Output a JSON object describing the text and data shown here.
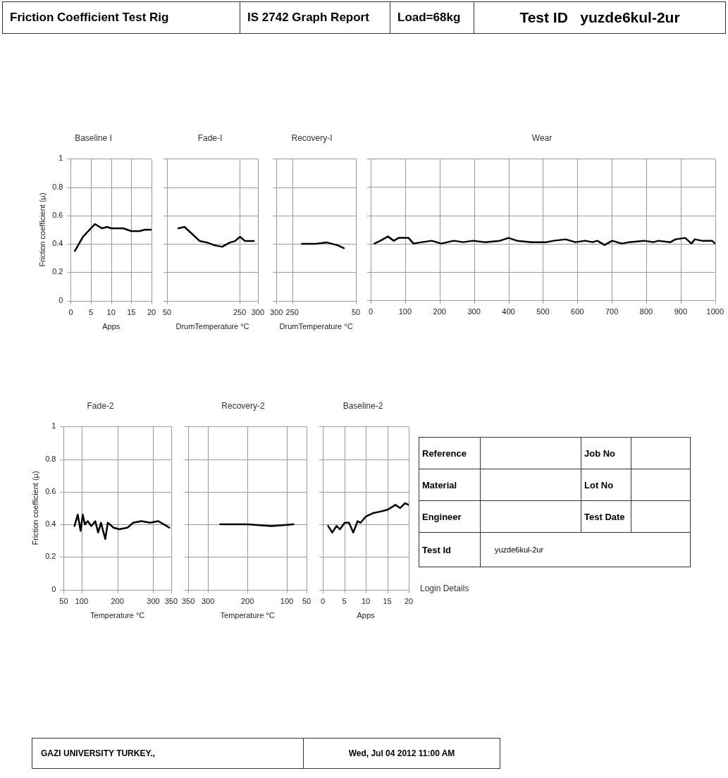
{
  "chart_data": [
    {
      "type": "other",
      "title": "Friction Coefficient Test Rig",
      "annotations": [
        "IS 2742 Graph Report",
        "Load=68kg",
        "Test ID   yuzde6kul-2ur"
      ]
    },
    {
      "type": "line",
      "title": "Baseline I",
      "xlabel": "Apps",
      "ylabel": "Friction coefficient (µ)",
      "xlim": [
        0,
        20
      ],
      "xticks": [
        0,
        5,
        10,
        15,
        20
      ],
      "ylim": [
        0,
        1
      ],
      "yticks": [
        0,
        0.2,
        0.4,
        0.6,
        0.8,
        1
      ],
      "grid": true,
      "series": [
        {
          "color": "#000000",
          "x": [
            1,
            3,
            4.3,
            6,
            7.7,
            9,
            10,
            13,
            15,
            17,
            18.3,
            20
          ],
          "values": [
            0.35,
            0.45,
            0.49,
            0.54,
            0.51,
            0.52,
            0.51,
            0.51,
            0.49,
            0.49,
            0.5,
            0.5
          ]
        }
      ]
    },
    {
      "type": "line",
      "title": "Fade-I",
      "xlabel": "DrumTemperature °C",
      "xlim": [
        50,
        300
      ],
      "xticks": [
        50,
        250,
        300
      ],
      "ylim": [
        0,
        1
      ],
      "yticks": [
        0,
        0.2,
        0.4,
        0.6,
        0.8,
        1
      ],
      "grid": true,
      "tick_labels": "x",
      "series": [
        {
          "color": "#000000",
          "x": [
            81,
            98,
            119,
            140,
            160,
            181,
            202,
            223,
            237,
            251,
            265,
            289
          ],
          "values": [
            0.51,
            0.52,
            0.47,
            0.42,
            0.41,
            0.39,
            0.38,
            0.41,
            0.42,
            0.45,
            0.42,
            0.42
          ]
        }
      ]
    },
    {
      "type": "line",
      "title": "Recovery-I",
      "xlabel": "DrumTemperature °C",
      "xlim": [
        300,
        50
      ],
      "xticks": [
        300,
        250,
        50
      ],
      "ylim": [
        0,
        1
      ],
      "yticks": [
        0,
        0.2,
        0.4,
        0.6,
        0.8,
        1
      ],
      "grid": true,
      "tick_labels": "x",
      "series": [
        {
          "color": "#000000",
          "x": [
            220,
            180,
            141,
            107,
            88
          ],
          "values": [
            0.4,
            0.4,
            0.41,
            0.39,
            0.37
          ]
        }
      ]
    },
    {
      "type": "line",
      "title": "Wear",
      "xlim": [
        0,
        1000
      ],
      "xticks": [
        0,
        100,
        200,
        300,
        400,
        500,
        600,
        700,
        800,
        900,
        1000
      ],
      "ylim": [
        0,
        1
      ],
      "yticks": [
        0,
        0.2,
        0.4,
        0.6,
        0.8,
        1
      ],
      "grid": true,
      "tick_labels": "x",
      "series": [
        {
          "color": "#000000",
          "x": [
            11,
            28,
            50,
            67,
            81,
            110,
            124,
            149,
            177,
            205,
            241,
            269,
            297,
            333,
            375,
            400,
            425,
            467,
            510,
            531,
            566,
            594,
            623,
            644,
            658,
            679,
            701,
            729,
            750,
            793,
            821,
            835,
            870,
            885,
            913,
            931,
            941,
            962,
            991,
            1000
          ],
          "values": [
            0.4,
            0.42,
            0.45,
            0.42,
            0.44,
            0.44,
            0.4,
            0.41,
            0.42,
            0.4,
            0.42,
            0.41,
            0.42,
            0.41,
            0.42,
            0.44,
            0.42,
            0.41,
            0.41,
            0.42,
            0.43,
            0.41,
            0.42,
            0.41,
            0.42,
            0.39,
            0.42,
            0.4,
            0.41,
            0.42,
            0.41,
            0.42,
            0.41,
            0.43,
            0.44,
            0.4,
            0.43,
            0.42,
            0.42,
            0.4
          ]
        }
      ]
    },
    {
      "type": "line",
      "title": "Fade-2",
      "xlabel": "Temperature °C",
      "ylabel": "Friction coefficient (µ)",
      "xlim": [
        50,
        350
      ],
      "xticks": [
        50,
        100,
        200,
        300,
        350
      ],
      "ylim": [
        0,
        1
      ],
      "yticks": [
        0,
        0.2,
        0.4,
        0.6,
        0.8,
        1
      ],
      "grid": true,
      "series": [
        {
          "color": "#000000",
          "x": [
            80,
            89,
            97,
            103,
            109,
            117,
            127,
            138,
            146,
            154,
            166,
            173,
            189,
            205,
            228,
            244,
            267,
            291,
            314,
            330,
            345
          ],
          "values": [
            0.39,
            0.46,
            0.36,
            0.46,
            0.4,
            0.42,
            0.39,
            0.42,
            0.35,
            0.41,
            0.31,
            0.41,
            0.38,
            0.37,
            0.38,
            0.41,
            0.42,
            0.41,
            0.42,
            0.4,
            0.38
          ]
        }
      ]
    },
    {
      "type": "line",
      "title": "Recovery-2",
      "xlabel": "Temperature °C",
      "xlim": [
        350,
        50
      ],
      "xticks": [
        350,
        300,
        200,
        100,
        50
      ],
      "ylim": [
        0,
        1
      ],
      "yticks": [
        0,
        0.2,
        0.4,
        0.6,
        0.8,
        1
      ],
      "grid": true,
      "tick_labels": "x",
      "series": [
        {
          "color": "#000000",
          "x": [
            269,
            200,
            139,
            83
          ],
          "values": [
            0.4,
            0.4,
            0.39,
            0.4
          ]
        }
      ]
    },
    {
      "type": "line",
      "title": "Baseline-2",
      "xlabel": "Apps",
      "xlim": [
        0,
        20
      ],
      "xticks": [
        0,
        5,
        10,
        15,
        20
      ],
      "ylim": [
        0,
        1
      ],
      "yticks": [
        0,
        0.2,
        0.4,
        0.6,
        0.8,
        1
      ],
      "grid": true,
      "tick_labels": "x",
      "series": [
        {
          "color": "#000000",
          "x": [
            1.25,
            2.2,
            3.2,
            4,
            5.1,
            6.1,
            7.1,
            8.1,
            8.8,
            10.1,
            11.8,
            13.6,
            15.1,
            16.9,
            18,
            19.1,
            20
          ],
          "values": [
            0.39,
            0.35,
            0.39,
            0.37,
            0.41,
            0.41,
            0.35,
            0.42,
            0.41,
            0.45,
            0.47,
            0.48,
            0.49,
            0.52,
            0.5,
            0.53,
            0.52
          ]
        }
      ]
    },
    {
      "type": "other",
      "annotations": [
        "Reference",
        "Job No",
        "Material",
        "Lot No",
        "Engineer",
        "Test Date",
        "Test Id",
        "yuzde6kul-2ur",
        "Login Details",
        "GAZI UNIVERSITY TURKEY.,",
        "Wed, Jul 04 2012 11:00 AM"
      ]
    }
  ]
}
